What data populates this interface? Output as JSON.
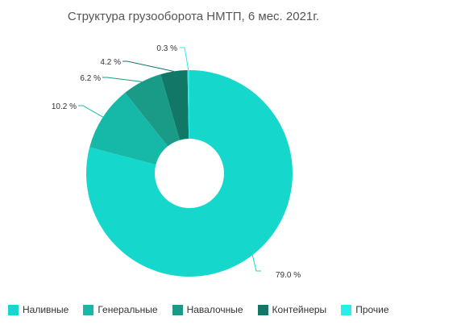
{
  "chart_data": {
    "type": "pie",
    "title": "Структура грузооборота НМТП, 6 мес. 2021г.",
    "categories": [
      "Наливные",
      "Генеральные",
      "Навалочные",
      "Контейнеры",
      "Прочие"
    ],
    "values": [
      79.0,
      10.2,
      6.2,
      4.2,
      0.3
    ],
    "value_labels": [
      "79.0 %",
      "10.2 %",
      "6.2 %",
      "4.2 %",
      "0.3 %"
    ],
    "colors": [
      "#16d7cc",
      "#16b8a8",
      "#1a9b87",
      "#117767",
      "#24f0e8"
    ],
    "donut": true,
    "legend_position": "bottom-left"
  }
}
